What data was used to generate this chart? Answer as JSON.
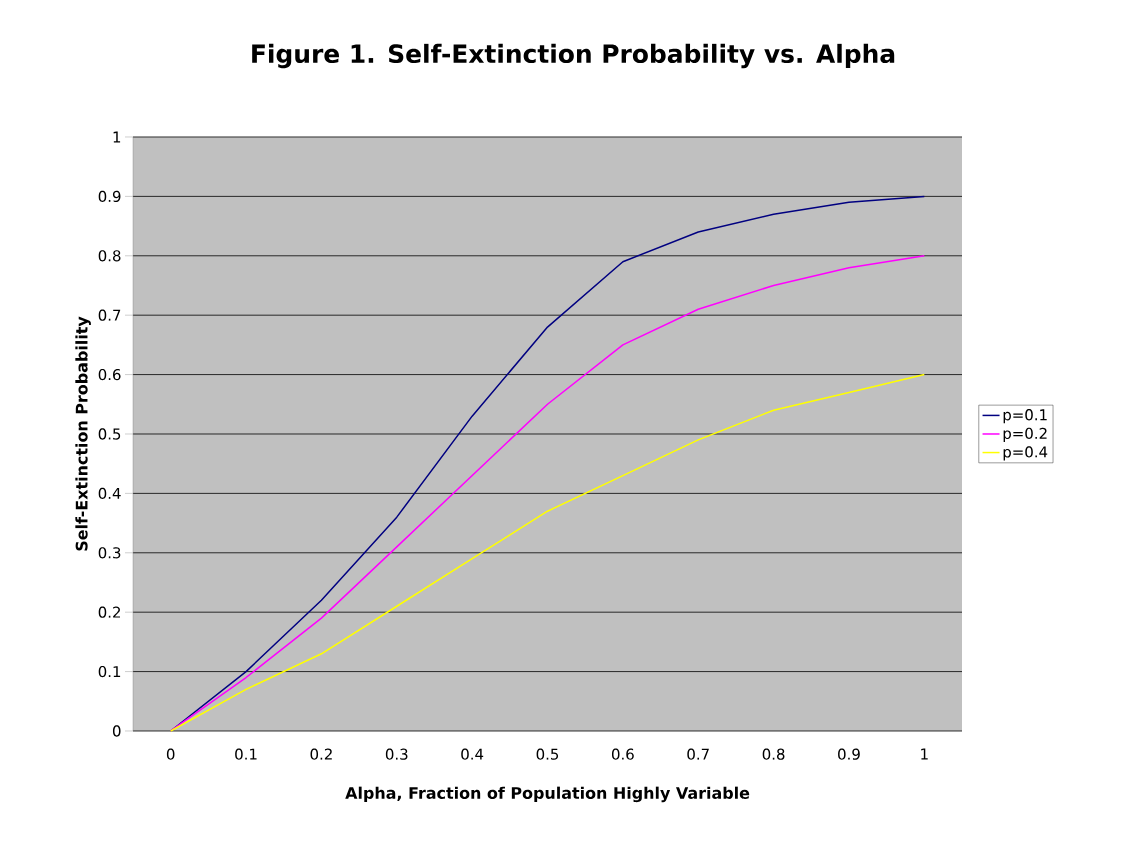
{
  "chart_data": {
    "type": "line",
    "title": "Figure 1.  Self-Extinction Probability vs. Alpha",
    "xlabel": "Alpha, Fraction of Population Highly Variable",
    "ylabel": "Self-Extinction Probability",
    "categories": [
      "0",
      "0.1",
      "0.2",
      "0.3",
      "0.4",
      "0.5",
      "0.6",
      "0.7",
      "0.8",
      "0.9",
      "1"
    ],
    "series": [
      {
        "name": "p=0.1",
        "color": "#000080",
        "values": [
          0,
          0.1,
          0.22,
          0.36,
          0.53,
          0.68,
          0.79,
          0.84,
          0.87,
          0.89,
          0.9
        ]
      },
      {
        "name": "p=0.2",
        "color": "#ff00ff",
        "values": [
          0,
          0.09,
          0.19,
          0.31,
          0.43,
          0.55,
          0.65,
          0.71,
          0.75,
          0.78,
          0.8
        ]
      },
      {
        "name": "p=0.4",
        "color": "#ffff00",
        "values": [
          0,
          0.07,
          0.13,
          0.21,
          0.29,
          0.37,
          0.43,
          0.49,
          0.54,
          0.57,
          0.6
        ]
      }
    ],
    "ylim": [
      0,
      1
    ],
    "yticks": [
      0,
      0.1,
      0.2,
      0.3,
      0.4,
      0.5,
      0.6,
      0.7,
      0.8,
      0.9,
      1
    ],
    "grid": "y",
    "legend": "right"
  }
}
